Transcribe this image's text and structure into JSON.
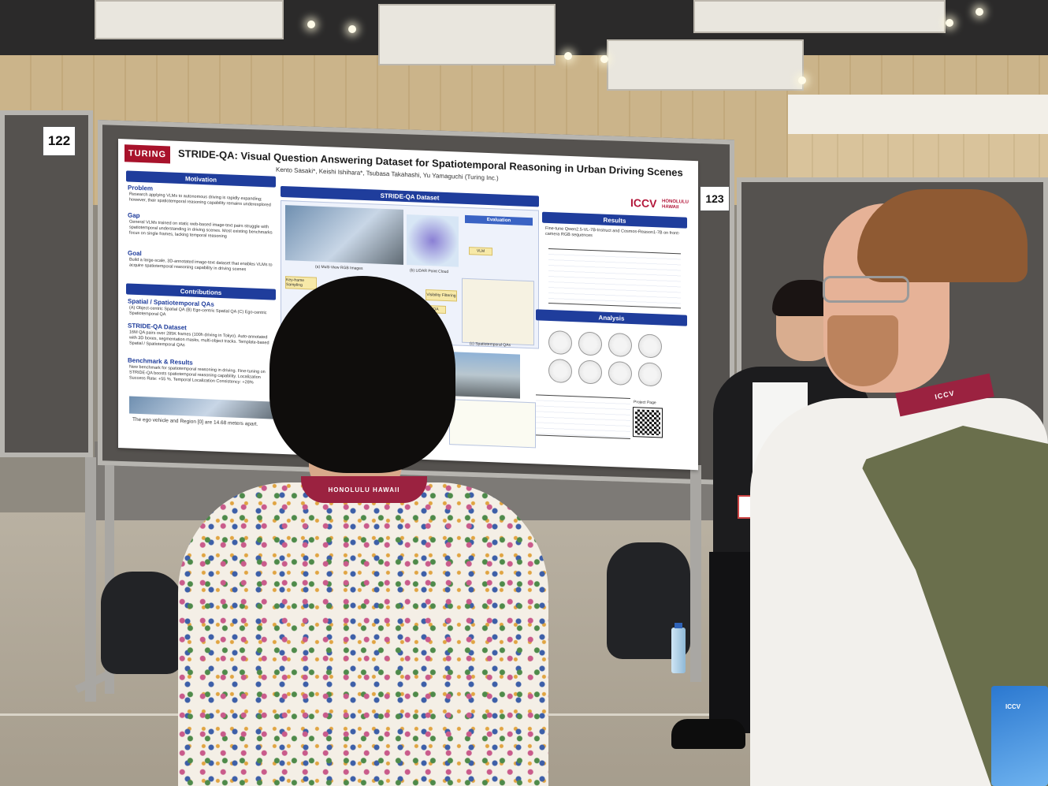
{
  "scene": {
    "description_labels": {
      "left_board_number": "122",
      "right_board_number": "123"
    }
  },
  "poster": {
    "logo": "TURING",
    "title": "STRIDE-QA: Visual Question Answering Dataset for Spatiotemporal Reasoning in Urban Driving Scenes",
    "authors": "Kento Sasaki*, Keishi Ishihara*, Tsubasa Takahashi, Yu Yamaguchi (Turing Inc.)",
    "conference_logo": "ICCV",
    "conference_sub": [
      "HONOLULU",
      "HAWAII"
    ],
    "sections": {
      "motivation": "Motivation",
      "dataset": "STRIDE-QA Dataset",
      "results": "Results",
      "contributions": "Contributions",
      "analysis": "Analysis"
    },
    "problem": {
      "heading": "Problem",
      "text": "Research applying VLMs to autonomous driving is rapidly expanding; however, their spatiotemporal reasoning capability remains underexplored"
    },
    "gap": {
      "heading": "Gap",
      "text": "General VLMs trained on static web-based image-text pairs struggle with spatiotemporal understanding in driving scenes. Most existing benchmarks focus on single frames, lacking temporal reasoning"
    },
    "goal": {
      "heading": "Goal",
      "text": "Build a large-scale, 3D-annotated image-text dataset that enables VLMs to acquire spatiotemporal reasoning capability in driving scenes"
    },
    "spatial_qas": {
      "heading": "Spatial / Spatiotemporal QAs",
      "text": "(A) Object-centric Spatial QA (B) Ego-centric Spatial QA (C) Ego-centric Spatiotemporal QA"
    },
    "stride_dataset": {
      "heading": "STRIDE-QA Dataset",
      "text": "16M QA pairs over 285K frames (100h driving in Tokyo). Auto-annotated with 3D boxes, segmentation masks, multi-object tracks. Template-based Spatial / Spatiotemporal QAs"
    },
    "benchmark": {
      "heading": "Benchmark & Results",
      "text": "New benchmark for spatiotemporal reasoning in driving. Fine-tuning on STRIDE-QA boosts spatiotemporal reasoning capability. Localization Success Rate: +55 %. Temporal Localization Consistency: +28%"
    },
    "caption_bottom_left": "The ego vehicle and Region [0] are 14.68 meters apart.",
    "figure_labels": {
      "multiview": "(a) Multi-View RGB Images",
      "lidar": "(b) LiDAR Point Cloud",
      "evaluation": "Evaluation",
      "vlm": "VLM",
      "keyframe": "Key-frame Sampling",
      "qa": "QA",
      "visibility": "Visibility Filtering",
      "spatiotemporal": "(c) Spatiotemporal QAs"
    },
    "results_text": "Fine-tune Qwen2.5-VL-7B-Instruct and Cosmos-Reason1-7B on front-camera RGB sequences",
    "project_page": "Project Page"
  },
  "badges": {
    "lanyard_text": "ICCV",
    "lanyard_sub": "HONOLULU HAWAII"
  },
  "colors": {
    "poster_blue": "#1f3d9c",
    "turing_red": "#a8122b",
    "lanyard_maroon": "#9b2240"
  }
}
